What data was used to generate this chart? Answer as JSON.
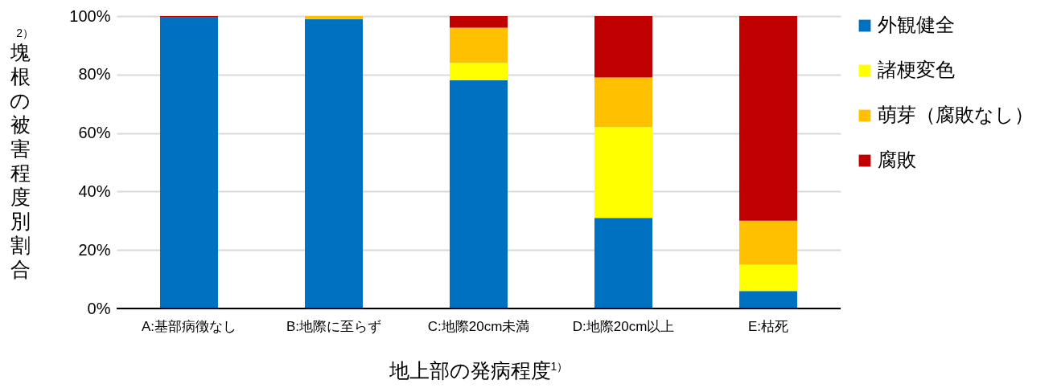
{
  "chart_data": {
    "type": "bar",
    "stacked": true,
    "xlabel": "地上部の発病程度$^{1）}$",
    "ylabel": "$^{2）}$塊根の被害程度別割合",
    "categories": [
      "A:基部病徴なし",
      "B:地際に至らず",
      "C:地際20cm未満",
      "D:地際20cm以上",
      "E:枯死"
    ],
    "series": [
      {
        "name": "外観健全",
        "color": "#0070c0",
        "values": [
          99.5,
          99,
          78,
          31,
          6
        ]
      },
      {
        "name": "諸梗変色",
        "color": "#ffff00",
        "values": [
          0,
          0,
          6,
          31,
          9
        ]
      },
      {
        "name": "萌芽（腐敗なし）",
        "color": "#ffc000",
        "values": [
          0,
          1,
          12,
          17,
          15
        ]
      },
      {
        "name": "腐敗",
        "color": "#c00000",
        "values": [
          0.5,
          0,
          4,
          21,
          70
        ]
      }
    ],
    "ylim": [
      0,
      100
    ],
    "yticks": [
      {
        "value": 0,
        "label": "0%"
      },
      {
        "value": 20,
        "label": "20%"
      },
      {
        "value": 40,
        "label": "40%"
      },
      {
        "value": 60,
        "label": "60%"
      },
      {
        "value": 80,
        "label": "80%"
      },
      {
        "value": 100,
        "label": "100%"
      }
    ],
    "grid": "y",
    "legend": "right"
  }
}
